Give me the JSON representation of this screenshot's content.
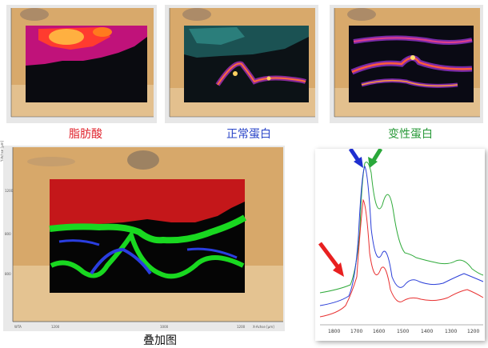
{
  "panels": [
    {
      "caption": "脂肪酸",
      "caption_color": "#e0202a"
    },
    {
      "caption": "正常蛋白",
      "caption_color": "#2a45c8"
    },
    {
      "caption": "变性蛋白",
      "caption_color": "#2a9a3a"
    }
  ],
  "overlay": {
    "caption": "叠加图",
    "caption_color": "#111111",
    "y_axis_label": "Y-Achse [µm]",
    "x_axis_label": "X-Achse [µm]",
    "corner_label": "WTA",
    "x_ticks": [
      "1200",
      "1000",
      "1200"
    ],
    "y_ticks": [
      "1200",
      "800",
      "800"
    ]
  },
  "spectra": {
    "x_ticks": [
      "1800",
      "1700",
      "1600",
      "1500",
      "1400",
      "1300",
      "1200"
    ],
    "colors": {
      "red": "#e83030",
      "blue": "#2a3ed8",
      "green": "#2faa3a"
    }
  }
}
